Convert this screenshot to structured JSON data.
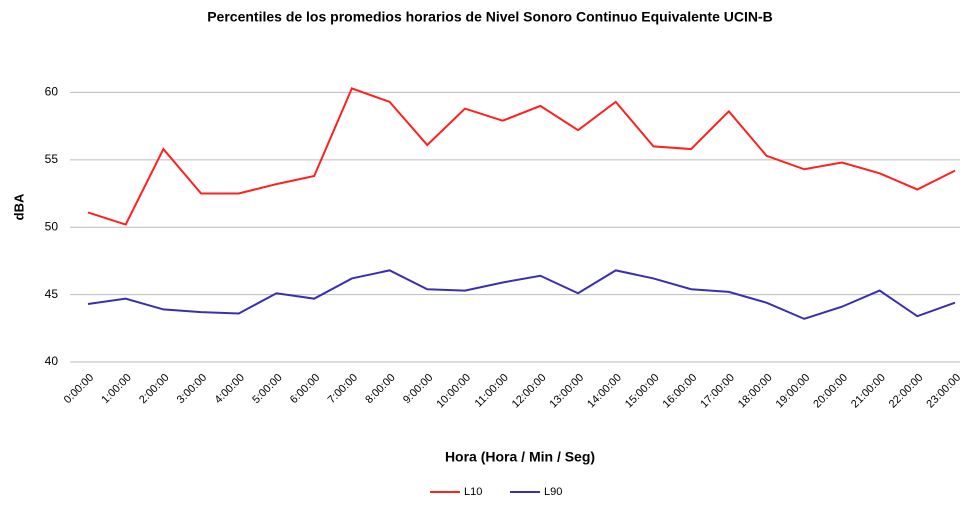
{
  "chart_data": {
    "type": "line",
    "title": "Percentiles de los promedios horarios de Nivel Sonoro Continuo Equivalente UCIN-B",
    "x_label": "Hora (Hora / Min / Seg)",
    "y_label": "dBA",
    "categories": [
      "0:00:00",
      "1:00:00",
      "2:00:00",
      "3:00:00",
      "4:00:00",
      "5:00:00",
      "6:00:00",
      "7:00:00",
      "8:00:00",
      "9:00:00",
      "10:00:00",
      "11:00:00",
      "12:00:00",
      "13:00:00",
      "14:00:00",
      "15:00:00",
      "16:00:00",
      "17:00:00",
      "18:00:00",
      "19:00:00",
      "20:00:00",
      "21:00:00",
      "22:00:00",
      "23:00:00"
    ],
    "series": [
      {
        "name": "L10",
        "color": "#ff2020",
        "values": [
          51.1,
          50.2,
          55.8,
          52.5,
          52.5,
          53.2,
          53.8,
          60.3,
          59.3,
          56.1,
          58.8,
          57.9,
          59.0,
          57.2,
          59.3,
          56.0,
          55.8,
          58.6,
          55.3,
          54.3,
          54.8,
          54.0,
          52.8,
          54.2
        ]
      },
      {
        "name": "L90",
        "color": "#3a2fb0",
        "values": [
          44.3,
          44.7,
          43.9,
          43.7,
          43.6,
          45.1,
          44.7,
          46.2,
          46.8,
          45.4,
          45.3,
          45.9,
          46.4,
          45.1,
          46.8,
          46.2,
          45.4,
          45.2,
          44.4,
          43.2,
          44.1,
          45.3,
          43.4,
          44.4
        ]
      }
    ],
    "ylim": [
      40,
      63
    ],
    "yticks": [
      40,
      45,
      50,
      55,
      60
    ],
    "grid": true
  }
}
